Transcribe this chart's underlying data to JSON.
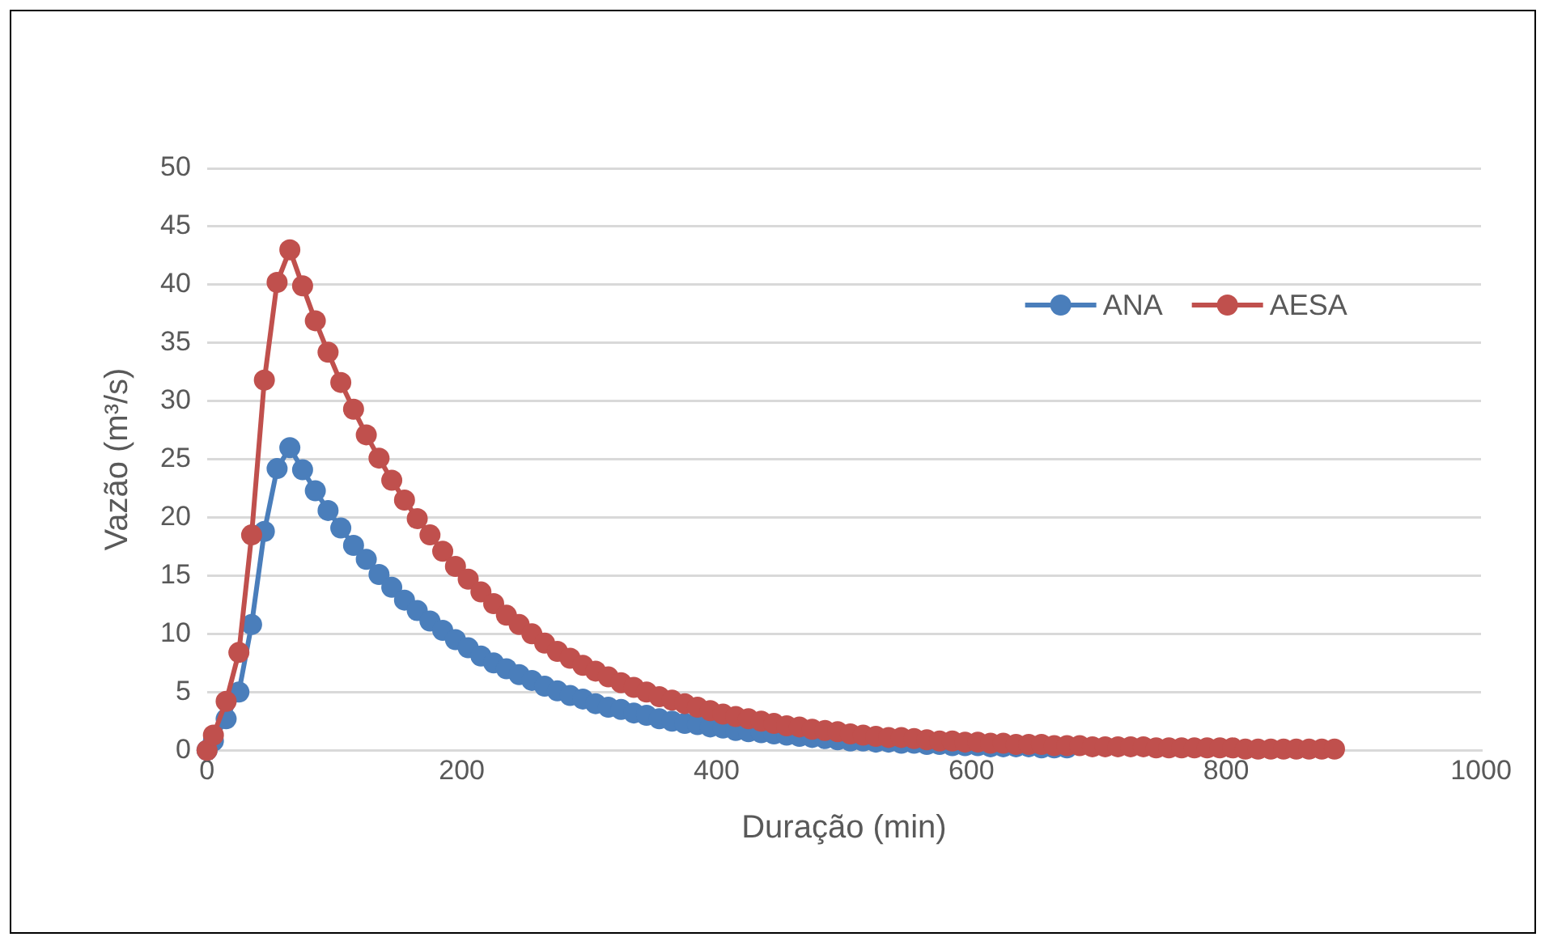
{
  "chart_data": {
    "type": "line",
    "xlabel": "Duração (min)",
    "ylabel": "Vazão (m³/s)",
    "x": [
      0,
      5,
      15,
      25,
      35,
      45,
      55,
      65,
      75,
      85,
      95,
      105,
      115,
      125,
      135,
      145,
      155,
      165,
      175,
      185,
      195,
      205,
      215,
      225,
      235,
      245,
      255,
      265,
      275,
      285,
      295,
      305,
      315,
      325,
      335,
      345,
      355,
      365,
      375,
      385,
      395,
      405,
      415,
      425,
      435,
      445,
      455,
      465,
      475,
      485,
      495,
      505,
      515,
      525,
      535,
      545,
      555,
      565,
      575,
      585,
      595,
      605,
      615,
      625,
      635,
      645,
      655,
      665,
      675,
      685,
      695,
      705,
      715,
      725,
      735,
      745,
      755,
      765,
      775,
      785,
      795,
      805,
      815,
      825,
      835,
      845,
      855,
      865,
      875,
      885
    ],
    "series": [
      {
        "name": "ANA",
        "color": "#4a7ebb",
        "values": [
          0,
          0.8,
          2.7,
          5.0,
          10.8,
          18.8,
          24.2,
          26.0,
          24.1,
          22.3,
          20.6,
          19.1,
          17.6,
          16.4,
          15.1,
          14.0,
          12.9,
          12.0,
          11.1,
          10.3,
          9.5,
          8.8,
          8.1,
          7.5,
          7.0,
          6.5,
          6.0,
          5.5,
          5.1,
          4.7,
          4.4,
          4.0,
          3.7,
          3.5,
          3.2,
          3.0,
          2.7,
          2.5,
          2.3,
          2.2,
          2.0,
          1.9,
          1.7,
          1.6,
          1.5,
          1.4,
          1.3,
          1.2,
          1.1,
          1.0,
          0.9,
          0.8,
          0.8,
          0.7,
          0.7,
          0.6,
          0.6,
          0.5,
          0.5,
          0.4,
          0.4,
          0.4,
          0.3,
          0.3,
          0.3,
          0.3,
          0.2,
          0.2,
          0.2,
          null,
          null,
          null,
          null,
          null,
          null,
          null,
          null,
          null,
          null,
          null,
          null,
          null,
          null,
          null,
          null,
          null,
          null,
          null,
          null,
          null
        ]
      },
      {
        "name": "AESA",
        "color": "#c0504d",
        "values": [
          0,
          1.3,
          4.2,
          8.4,
          18.5,
          31.8,
          40.2,
          43.0,
          39.9,
          36.9,
          34.2,
          31.6,
          29.3,
          27.1,
          25.1,
          23.2,
          21.5,
          19.9,
          18.5,
          17.1,
          15.8,
          14.7,
          13.6,
          12.6,
          11.6,
          10.8,
          10.0,
          9.2,
          8.5,
          7.9,
          7.3,
          6.8,
          6.3,
          5.8,
          5.4,
          5.0,
          4.6,
          4.3,
          4.0,
          3.7,
          3.4,
          3.1,
          2.9,
          2.7,
          2.5,
          2.3,
          2.1,
          2.0,
          1.8,
          1.7,
          1.6,
          1.4,
          1.3,
          1.2,
          1.1,
          1.1,
          1.0,
          0.9,
          0.8,
          0.8,
          0.7,
          0.7,
          0.6,
          0.6,
          0.5,
          0.5,
          0.5,
          0.4,
          0.4,
          0.4,
          0.3,
          0.3,
          0.3,
          0.3,
          0.3,
          0.2,
          0.2,
          0.2,
          0.2,
          0.2,
          0.2,
          0.2,
          0.1,
          0.1,
          0.1,
          0.1,
          0.1,
          0.1,
          0.1,
          0.1
        ]
      }
    ],
    "xlim": [
      0,
      1000
    ],
    "xticks": [
      0,
      200,
      400,
      600,
      800,
      1000
    ],
    "ylim": [
      0,
      50
    ],
    "yticks": [
      0,
      5,
      10,
      15,
      20,
      25,
      30,
      35,
      40,
      45,
      50
    ],
    "grid": "y",
    "legend": "top right",
    "marker": "circle",
    "line_style": "solid"
  }
}
